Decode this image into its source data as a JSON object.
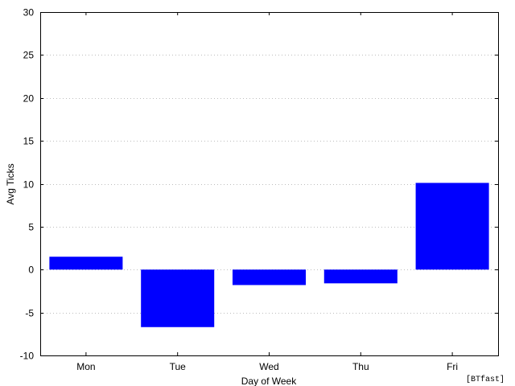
{
  "chart_data": {
    "type": "bar",
    "categories": [
      "Mon",
      "Tue",
      "Wed",
      "Thu",
      "Fri"
    ],
    "values": [
      1.5,
      -6.7,
      -1.8,
      -1.6,
      10.1
    ],
    "xlabel": "Day of Week",
    "ylabel": "Avg Ticks",
    "ylim": [
      -10,
      30
    ],
    "yticks": [
      "-10",
      "-5",
      "0",
      "5",
      "10",
      "15",
      "20",
      "25",
      "30"
    ],
    "grid": "horizontal dotted",
    "bar_color": "#0000ff"
  },
  "watermark": "[BTfast]"
}
